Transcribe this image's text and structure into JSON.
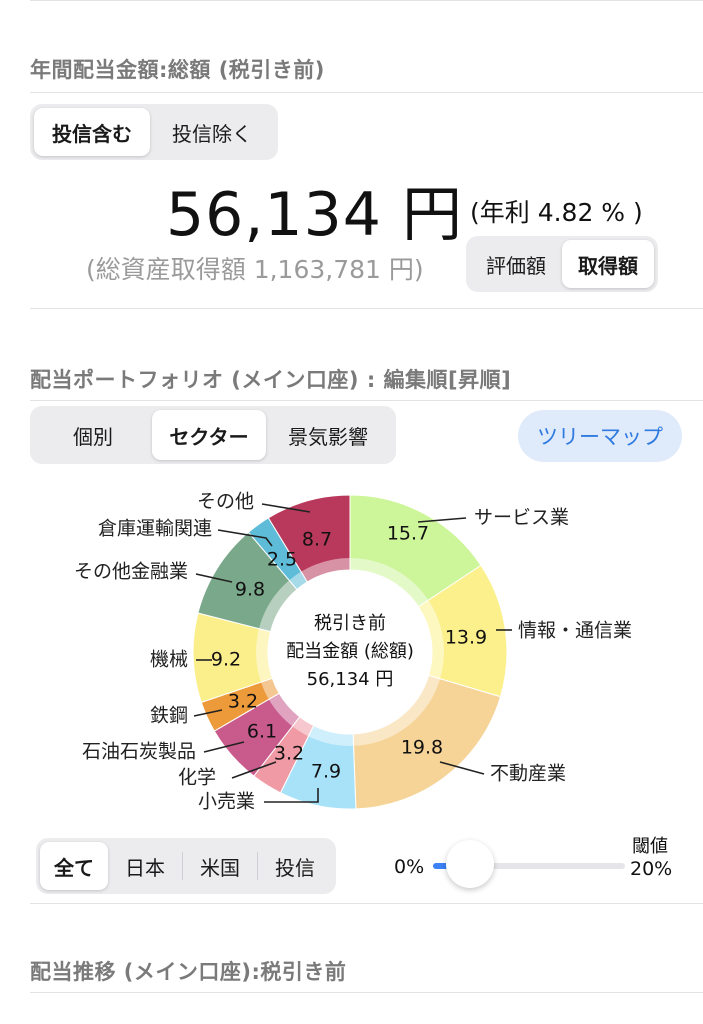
{
  "section1": {
    "title": "年間配当金額:総額 (税引き前)",
    "toggle": [
      "投信含む",
      "投信除く"
    ],
    "toggle_active": 0,
    "amount": "56,134 円",
    "yield": "(年利 4.82 % )",
    "acquisition": "(総資産取得額 1,163,781 円)",
    "basis_toggle": [
      "評価額",
      "取得額"
    ],
    "basis_active": 1
  },
  "section2": {
    "title": "配当ポートフォリオ (メイン口座) : 編集順[昇順]",
    "tabs": [
      "個別",
      "セクター",
      "景気影響"
    ],
    "tab_active": 1,
    "treemap_button": "ツリーマップ",
    "filter_tabs": [
      "全て",
      "日本",
      "米国",
      "投信"
    ],
    "filter_active": 0,
    "threshold_label": "閾値",
    "threshold_min": "0%",
    "threshold_max": "20%",
    "threshold_value": 0.0
  },
  "chart_data": {
    "type": "pie",
    "donut": true,
    "center_text": [
      "税引き前",
      "配当金額 (総額)",
      "56,134 円"
    ],
    "categories": [
      "サービス業",
      "情報・通信業",
      "不動産業",
      "小売業",
      "化学",
      "石油石炭製品",
      "鉄鋼",
      "機械",
      "その他金融業",
      "倉庫運輸関連",
      "その他"
    ],
    "values": [
      15.7,
      13.9,
      19.8,
      7.9,
      3.2,
      6.1,
      3.2,
      9.2,
      9.8,
      2.5,
      8.7
    ],
    "value_labels": [
      "15.7",
      "13.9",
      "19.8",
      "7.9",
      "3.2",
      "6.1",
      "3.2",
      "9.2",
      "9.8",
      "2.5",
      "8.7"
    ],
    "colors": [
      "#cdf59a",
      "#fbf08c",
      "#f6d396",
      "#a8e2f9",
      "#ef9aa4",
      "#c95a8c",
      "#ec9a3a",
      "#fbef8c",
      "#7aa88a",
      "#5fbcd8",
      "#b8395b"
    ]
  },
  "section3": {
    "title": "配当推移 (メイン口座):税引き前"
  }
}
